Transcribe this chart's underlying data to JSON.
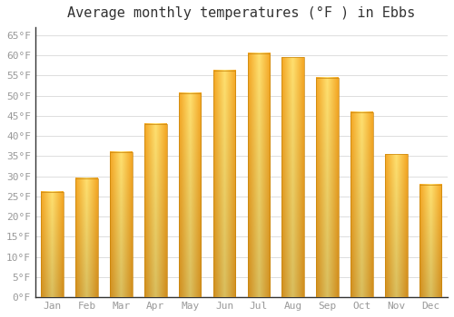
{
  "title": "Average monthly temperatures (°F ) in Ebbs",
  "months": [
    "Jan",
    "Feb",
    "Mar",
    "Apr",
    "May",
    "Jun",
    "Jul",
    "Aug",
    "Sep",
    "Oct",
    "Nov",
    "Dec"
  ],
  "values": [
    26.1,
    29.5,
    36.0,
    43.0,
    50.7,
    56.3,
    60.6,
    59.5,
    54.5,
    46.0,
    35.5,
    27.9
  ],
  "bar_color_outer": "#F5A623",
  "bar_color_inner": "#FFD966",
  "bar_color_center": "#FFE590",
  "background_color": "#FFFFFF",
  "grid_color": "#DDDDDD",
  "ylim": [
    0,
    67
  ],
  "yticks": [
    0,
    5,
    10,
    15,
    20,
    25,
    30,
    35,
    40,
    45,
    50,
    55,
    60,
    65
  ],
  "title_fontsize": 11,
  "tick_fontsize": 8,
  "tick_font_family": "monospace",
  "tick_color": "#999999",
  "title_color": "#333333"
}
